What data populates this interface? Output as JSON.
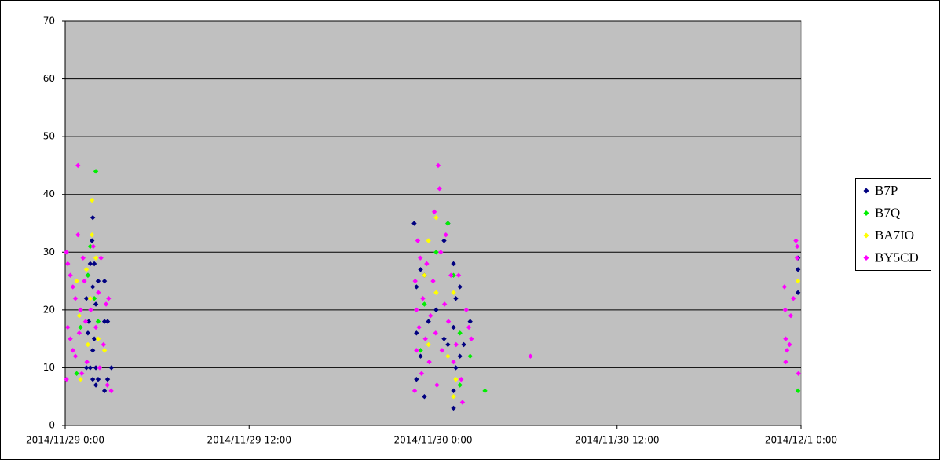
{
  "chart_data": {
    "type": "scatter",
    "xlim": [
      "2014/11/29 0:00",
      "2014/12/1 0:00"
    ],
    "xticks": [
      "2014/11/29 0:00",
      "2014/11/29 12:00",
      "2014/11/30 0:00",
      "2014/11/30 12:00",
      "2014/12/1 0:00"
    ],
    "ylim": [
      0,
      70
    ],
    "yticks": [
      0,
      10,
      20,
      30,
      40,
      50,
      60,
      70
    ],
    "grid": true,
    "legend": "right",
    "series": [
      {
        "name": "B7P",
        "color": "#000080",
        "x": [
          "2014/11/29 1:48",
          "2014/11/29 1:45",
          "2014/11/29 1:38",
          "2014/11/29 1:54",
          "2014/11/29 1:29",
          "2014/11/29 2:09",
          "2014/11/29 2:34",
          "2014/11/29 1:48",
          "2014/11/29 1:23",
          "2014/11/29 2:00",
          "2014/11/29 1:32",
          "2014/11/29 2:34",
          "2014/11/29 2:46",
          "2014/11/29 1:29",
          "2014/11/29 1:54",
          "2014/11/29 1:48",
          "2014/11/29 1:23",
          "2014/11/29 1:38",
          "2014/11/29 2:00",
          "2014/11/29 3:01",
          "2014/11/29 1:48",
          "2014/11/29 2:09",
          "2014/11/29 2:00",
          "2014/11/29 2:46",
          "2014/11/29 2:34",
          "2014/11/29 22:46",
          "2014/11/29 23:11",
          "2014/11/29 22:55",
          "2014/11/29 23:26",
          "2014/11/29 23:42",
          "2014/11/29 22:55",
          "2014/11/29 23:11",
          "2014/11/29 22:55",
          "2014/11/29 23:26",
          "2014/11/30 0:12",
          "2014/11/30 0:43",
          "2014/11/30 0:58",
          "2014/11/30 1:20",
          "2014/11/30 1:29",
          "2014/11/30 1:45",
          "2014/11/30 1:20",
          "2014/11/30 0:58",
          "2014/11/30 1:29",
          "2014/11/30 1:20",
          "2014/11/30 1:20",
          "2014/11/30 2:00",
          "2014/11/30 2:25",
          "2014/11/30 1:45",
          "2014/11/30 0:43",
          "2014/11/30 23:48",
          "2014/11/30 23:48",
          "2014/11/30 23:48"
        ],
        "values": [
          36,
          32,
          28,
          28,
          26,
          25,
          25,
          24,
          22,
          21,
          18,
          18,
          18,
          16,
          15,
          13,
          10,
          10,
          10,
          10,
          8,
          8,
          7,
          8,
          6,
          35,
          27,
          24,
          26,
          18,
          16,
          12,
          8,
          5,
          20,
          32,
          35,
          28,
          22,
          24,
          17,
          14,
          10,
          6,
          3,
          14,
          18,
          12,
          15,
          29,
          27,
          23
        ]
      },
      {
        "name": "B7Q",
        "color": "#00ee00",
        "x": [
          "2014/11/29 2:00",
          "2014/11/29 1:38",
          "2014/11/29 1:29",
          "2014/11/29 1:00",
          "2014/11/29 2:09",
          "2014/11/29 0:45",
          "2014/11/29 1:54",
          "2014/11/30 0:58",
          "2014/11/30 0:12",
          "2014/11/30 1:20",
          "2014/11/30 1:45",
          "2014/11/30 1:45",
          "2014/11/30 2:25",
          "2014/11/30 3:23",
          "2014/11/29 23:26",
          "2014/11/29 23:11",
          "2014/11/30 23:48"
        ],
        "values": [
          44,
          31,
          26,
          17,
          18,
          9,
          22,
          35,
          30,
          26,
          16,
          7,
          12,
          6,
          21,
          13,
          6
        ]
      },
      {
        "name": "BA7IO",
        "color": "#ffff00",
        "x": [
          "2014/11/29 1:45",
          "2014/11/29 1:45",
          "2014/11/29 1:38",
          "2014/11/29 2:00",
          "2014/11/29 1:23",
          "2014/11/29 0:55",
          "2014/11/29 1:29",
          "2014/11/29 1:00",
          "2014/11/29 2:09",
          "2014/11/29 2:34",
          "2014/11/29 0:45",
          "2014/11/30 0:12",
          "2014/11/29 23:42",
          "2014/11/30 0:12",
          "2014/11/29 23:26",
          "2014/11/29 23:42",
          "2014/11/30 1:20",
          "2014/11/30 1:29",
          "2014/11/30 1:20",
          "2014/11/30 0:58",
          "2014/11/30 23:48"
        ],
        "values": [
          39,
          33,
          22,
          29,
          27,
          19,
          14,
          8,
          15,
          13,
          25,
          36,
          32,
          23,
          26,
          14,
          23,
          8,
          5,
          12,
          25
        ]
      },
      {
        "name": "BY5CD",
        "color": "#ff00ff",
        "x": [
          "2014/11/29 0:05",
          "2014/11/29 0:10",
          "2014/11/29 0:20",
          "2014/11/29 0:30",
          "2014/11/29 0:40",
          "2014/11/29 0:50",
          "2014/11/29 1:00",
          "2014/11/29 0:10",
          "2014/11/29 0:20",
          "2014/11/29 0:30",
          "2014/11/29 0:40",
          "2014/11/29 0:05",
          "2014/11/29 0:50",
          "2014/11/29 1:10",
          "2014/11/29 1:15",
          "2014/11/29 1:20",
          "2014/11/29 1:25",
          "2014/11/29 1:40",
          "2014/11/29 1:50",
          "2014/11/29 2:00",
          "2014/11/29 2:10",
          "2014/11/29 2:20",
          "2014/11/29 2:30",
          "2014/11/29 2:40",
          "2014/11/29 2:45",
          "2014/11/29 3:00",
          "2014/11/29 0:55",
          "2014/11/29 1:05",
          "2014/11/29 2:15",
          "2014/11/29 2:50",
          "2014/11/29 22:50",
          "2014/11/29 22:55",
          "2014/11/29 22:55",
          "2014/11/29 23:00",
          "2014/11/29 23:05",
          "2014/11/29 23:10",
          "2014/11/29 23:15",
          "2014/11/29 23:20",
          "2014/11/29 23:30",
          "2014/11/29 23:35",
          "2014/11/29 23:45",
          "2014/11/29 23:50",
          "2014/11/30 0:00",
          "2014/11/30 0:05",
          "2014/11/30 0:10",
          "2014/11/30 0:15",
          "2014/11/30 0:20",
          "2014/11/30 0:25",
          "2014/11/30 0:30",
          "2014/11/30 0:35",
          "2014/11/30 0:45",
          "2014/11/30 0:50",
          "2014/11/30 1:00",
          "2014/11/30 1:10",
          "2014/11/30 1:20",
          "2014/11/30 1:30",
          "2014/11/30 1:40",
          "2014/11/30 1:50",
          "2014/11/30 1:55",
          "2014/11/30 2:10",
          "2014/11/30 2:20",
          "2014/11/30 2:30",
          "2014/11/30 6:21",
          "2014/11/29 22:48",
          "2014/11/30 22:55",
          "2014/11/30 22:58",
          "2014/11/30 23:00",
          "2014/11/30 23:00",
          "2014/11/30 23:05",
          "2014/11/30 23:15",
          "2014/11/30 23:20",
          "2014/11/30 23:30",
          "2014/11/30 23:40",
          "2014/11/30 23:45",
          "2014/11/30 23:50",
          "2014/11/30 23:45"
        ],
        "values": [
          30,
          28,
          26,
          24,
          22,
          33,
          20,
          17,
          15,
          13,
          12,
          8,
          45,
          29,
          25,
          18,
          11,
          20,
          31,
          17,
          23,
          29,
          14,
          21,
          7,
          6,
          16,
          9,
          10,
          22,
          25,
          20,
          13,
          32,
          17,
          29,
          9,
          22,
          15,
          28,
          11,
          19,
          25,
          37,
          16,
          7,
          45,
          41,
          30,
          13,
          21,
          33,
          18,
          26,
          11,
          14,
          26,
          8,
          4,
          20,
          17,
          15,
          12,
          6,
          24,
          20,
          15,
          11,
          13,
          14,
          19,
          22,
          32,
          29,
          9,
          31
        ]
      }
    ]
  }
}
